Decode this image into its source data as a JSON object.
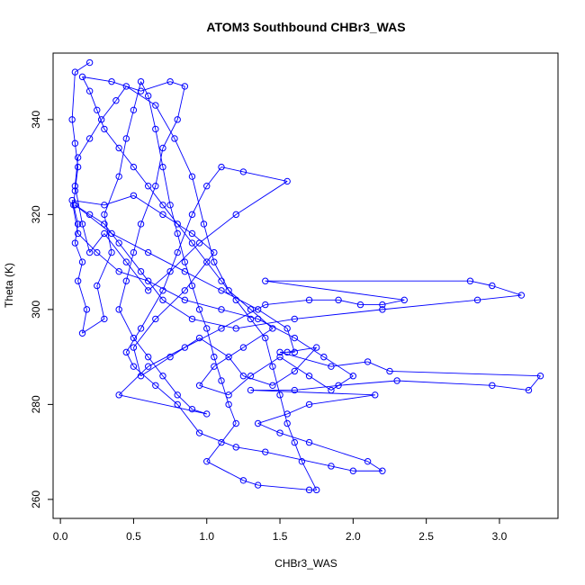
{
  "chart_data": {
    "type": "scatter",
    "title": "ATOM3 Southbound CHBr3_WAS",
    "xlabel": "CHBr3_WAS",
    "ylabel": "Theta (K)",
    "xlim": [
      -0.05,
      3.4
    ],
    "ylim": [
      256,
      354
    ],
    "x_ticks": [
      0.0,
      0.5,
      1.0,
      1.5,
      2.0,
      2.5,
      3.0
    ],
    "x_tick_labels": [
      "0.0",
      "0.5",
      "1.0",
      "1.5",
      "2.0",
      "2.5",
      "3.0"
    ],
    "y_ticks": [
      260,
      280,
      300,
      320,
      340
    ],
    "y_tick_labels": [
      "260",
      "280",
      "300",
      "320",
      "340"
    ],
    "grid": false,
    "legend": "none",
    "marker": "open-circle",
    "connected": true,
    "color": "#0000ff",
    "series": [
      {
        "points": [
          [
            0.2,
            352
          ],
          [
            0.1,
            350
          ],
          [
            0.08,
            340
          ],
          [
            0.1,
            335
          ],
          [
            0.12,
            330
          ],
          [
            0.1,
            325
          ],
          [
            0.09,
            322
          ],
          [
            0.12,
            318
          ],
          [
            0.1,
            314
          ],
          [
            0.15,
            310
          ],
          [
            0.12,
            306
          ],
          [
            0.18,
            300
          ],
          [
            0.15,
            295
          ],
          [
            0.3,
            298
          ],
          [
            0.25,
            305
          ],
          [
            0.35,
            312
          ],
          [
            0.3,
            320
          ],
          [
            0.4,
            328
          ],
          [
            0.45,
            336
          ],
          [
            0.5,
            342
          ],
          [
            0.55,
            348
          ],
          [
            0.6,
            345
          ],
          [
            0.65,
            338
          ],
          [
            0.7,
            330
          ],
          [
            0.75,
            322
          ],
          [
            0.8,
            316
          ],
          [
            0.85,
            310
          ],
          [
            0.9,
            305
          ],
          [
            0.95,
            300
          ],
          [
            1.0,
            296
          ],
          [
            1.05,
            290
          ],
          [
            1.1,
            285
          ],
          [
            1.15,
            280
          ],
          [
            1.2,
            276
          ],
          [
            1.1,
            272
          ],
          [
            1.0,
            268
          ],
          [
            1.25,
            264
          ],
          [
            1.35,
            263
          ],
          [
            1.7,
            262
          ],
          [
            1.75,
            262
          ],
          [
            1.65,
            268
          ],
          [
            1.6,
            272
          ],
          [
            1.55,
            276
          ],
          [
            1.5,
            282
          ],
          [
            1.45,
            288
          ],
          [
            1.4,
            294
          ],
          [
            1.3,
            298
          ],
          [
            1.2,
            302
          ],
          [
            1.1,
            306
          ],
          [
            1.0,
            310
          ],
          [
            0.9,
            314
          ],
          [
            0.8,
            318
          ],
          [
            0.7,
            322
          ],
          [
            0.6,
            326
          ],
          [
            0.5,
            330
          ],
          [
            0.4,
            334
          ],
          [
            0.3,
            338
          ],
          [
            0.25,
            342
          ],
          [
            0.2,
            346
          ],
          [
            0.15,
            349
          ],
          [
            0.35,
            348
          ],
          [
            0.55,
            346
          ],
          [
            0.75,
            348
          ],
          [
            0.85,
            347
          ],
          [
            0.8,
            340
          ],
          [
            0.7,
            334
          ],
          [
            0.65,
            326
          ],
          [
            0.55,
            318
          ],
          [
            0.5,
            312
          ],
          [
            0.45,
            306
          ],
          [
            0.4,
            300
          ],
          [
            0.5,
            294
          ],
          [
            0.6,
            290
          ],
          [
            0.7,
            286
          ],
          [
            0.8,
            282
          ],
          [
            0.9,
            279
          ],
          [
            1.0,
            278
          ],
          [
            0.4,
            282
          ],
          [
            0.6,
            288
          ],
          [
            0.85,
            292
          ],
          [
            1.1,
            296
          ],
          [
            1.4,
            301
          ],
          [
            1.7,
            302
          ],
          [
            1.9,
            302
          ],
          [
            2.05,
            301
          ],
          [
            2.2,
            301
          ],
          [
            2.35,
            302
          ],
          [
            1.4,
            306
          ],
          [
            2.8,
            306
          ],
          [
            2.95,
            305
          ],
          [
            3.15,
            303
          ],
          [
            2.85,
            302
          ],
          [
            2.2,
            300
          ],
          [
            1.6,
            298
          ],
          [
            1.2,
            296
          ],
          [
            0.9,
            298
          ],
          [
            0.7,
            302
          ],
          [
            0.55,
            308
          ],
          [
            0.4,
            314
          ],
          [
            0.3,
            318
          ],
          [
            0.2,
            320
          ],
          [
            0.1,
            322
          ],
          [
            0.35,
            316
          ],
          [
            0.6,
            312
          ],
          [
            0.85,
            308
          ],
          [
            1.1,
            304
          ],
          [
            1.35,
            300
          ],
          [
            1.55,
            296
          ],
          [
            1.6,
            291
          ],
          [
            1.5,
            291
          ],
          [
            1.85,
            288
          ],
          [
            2.1,
            289
          ],
          [
            2.25,
            287
          ],
          [
            3.28,
            286
          ],
          [
            3.2,
            283
          ],
          [
            2.95,
            284
          ],
          [
            2.3,
            285
          ],
          [
            1.9,
            284
          ],
          [
            1.6,
            283
          ],
          [
            1.3,
            283
          ],
          [
            2.15,
            282
          ],
          [
            1.7,
            280
          ],
          [
            1.55,
            278
          ],
          [
            1.35,
            276
          ],
          [
            1.5,
            274
          ],
          [
            1.7,
            272
          ],
          [
            2.1,
            268
          ],
          [
            2.2,
            266
          ],
          [
            2.0,
            266
          ],
          [
            1.85,
            267
          ],
          [
            1.4,
            270
          ],
          [
            1.2,
            271
          ],
          [
            0.95,
            274
          ],
          [
            0.8,
            280
          ],
          [
            0.65,
            284
          ],
          [
            0.5,
            288
          ],
          [
            0.45,
            291
          ],
          [
            0.55,
            296
          ],
          [
            0.7,
            304
          ],
          [
            0.8,
            312
          ],
          [
            0.9,
            320
          ],
          [
            1.0,
            326
          ],
          [
            1.1,
            330
          ],
          [
            1.25,
            329
          ],
          [
            1.55,
            327
          ],
          [
            1.2,
            320
          ],
          [
            0.95,
            314
          ],
          [
            0.75,
            308
          ],
          [
            0.6,
            304
          ],
          [
            0.45,
            310
          ],
          [
            0.3,
            316
          ],
          [
            0.2,
            312
          ],
          [
            0.15,
            318
          ],
          [
            0.1,
            326
          ],
          [
            0.12,
            332
          ],
          [
            0.2,
            336
          ],
          [
            0.28,
            340
          ],
          [
            0.38,
            344
          ],
          [
            0.45,
            347
          ],
          [
            0.65,
            343
          ],
          [
            0.78,
            336
          ],
          [
            0.9,
            328
          ],
          [
            0.98,
            318
          ],
          [
            1.05,
            310
          ],
          [
            1.15,
            304
          ],
          [
            1.3,
            300
          ],
          [
            1.45,
            296
          ],
          [
            1.25,
            292
          ],
          [
            1.05,
            288
          ],
          [
            0.95,
            284
          ],
          [
            1.15,
            282
          ],
          [
            1.3,
            286
          ],
          [
            1.5,
            290
          ],
          [
            1.7,
            286
          ],
          [
            1.85,
            283
          ],
          [
            2.0,
            286
          ],
          [
            1.8,
            290
          ],
          [
            1.6,
            294
          ],
          [
            1.35,
            298
          ],
          [
            1.1,
            300
          ],
          [
            0.85,
            302
          ],
          [
            0.6,
            306
          ],
          [
            0.4,
            308
          ],
          [
            0.25,
            312
          ],
          [
            0.12,
            316
          ],
          [
            0.08,
            323
          ],
          [
            0.3,
            322
          ],
          [
            0.5,
            324
          ],
          [
            0.7,
            320
          ],
          [
            0.9,
            316
          ],
          [
            1.05,
            312
          ],
          [
            0.85,
            304
          ],
          [
            0.65,
            298
          ],
          [
            0.5,
            292
          ],
          [
            0.55,
            286
          ],
          [
            0.75,
            290
          ],
          [
            0.95,
            294
          ],
          [
            1.15,
            290
          ],
          [
            1.25,
            286
          ],
          [
            1.45,
            284
          ],
          [
            1.6,
            287
          ],
          [
            1.75,
            292
          ],
          [
            1.55,
            291
          ]
        ]
      }
    ]
  }
}
